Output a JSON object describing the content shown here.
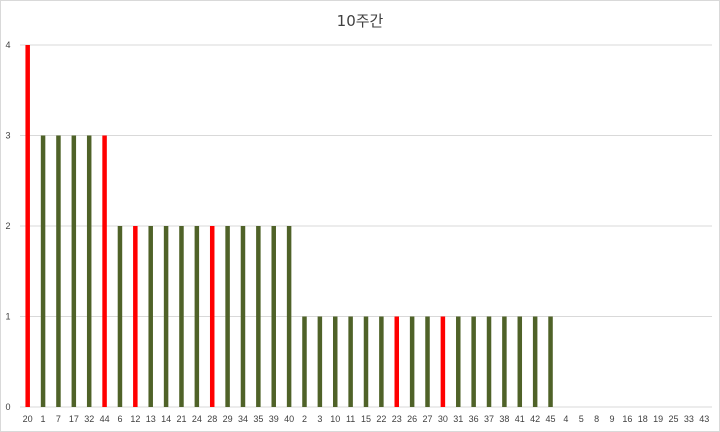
{
  "chart_data": {
    "type": "bar",
    "title": "10주간",
    "xlabel": "",
    "ylabel": "",
    "ylim": [
      0,
      4
    ],
    "yticks": [
      0,
      1,
      2,
      3,
      4
    ],
    "grid": true,
    "legend": "none",
    "colors": {
      "default": "#4f6228",
      "highlight": "#ff0000",
      "grid": "#d9d9d9"
    },
    "categories": [
      "20",
      "1",
      "7",
      "17",
      "32",
      "44",
      "6",
      "12",
      "13",
      "14",
      "21",
      "24",
      "28",
      "29",
      "34",
      "35",
      "39",
      "40",
      "2",
      "3",
      "10",
      "11",
      "15",
      "22",
      "23",
      "26",
      "27",
      "30",
      "31",
      "36",
      "37",
      "38",
      "41",
      "42",
      "45",
      "4",
      "5",
      "8",
      "9",
      "16",
      "18",
      "19",
      "25",
      "33",
      "43"
    ],
    "values": [
      4,
      3,
      3,
      3,
      3,
      3,
      2,
      2,
      2,
      2,
      2,
      2,
      2,
      2,
      2,
      2,
      2,
      2,
      1,
      1,
      1,
      1,
      1,
      1,
      1,
      1,
      1,
      1,
      1,
      1,
      1,
      1,
      1,
      1,
      1,
      0,
      0,
      0,
      0,
      0,
      0,
      0,
      0,
      0,
      0
    ],
    "highlight": [
      "20",
      "44",
      "12",
      "28",
      "23",
      "30"
    ]
  }
}
